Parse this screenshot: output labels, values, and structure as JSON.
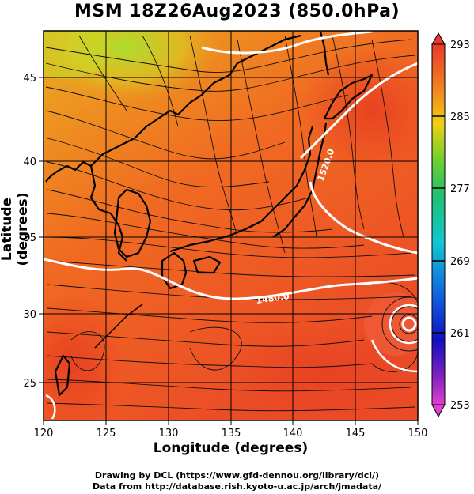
{
  "title": "MSM 18Z26Aug2023 (850.0hPa)",
  "xlabel": "Longitude (degrees)",
  "ylabel": "Latitude  (degrees)",
  "x_ticks": [
    "120",
    "125",
    "130",
    "135",
    "140",
    "145",
    "150"
  ],
  "y_ticks": [
    "25",
    "30",
    "35",
    "40",
    "45"
  ],
  "colorbar_ticks": [
    "293",
    "285",
    "277",
    "269",
    "261",
    "253"
  ],
  "contour_labels": [
    "1520.0",
    "1480.0"
  ],
  "credits": {
    "line1": "Drawing by DCL (https://www.gfd-dennou.org/library/dcl/)",
    "line2": "Data from http://database.rish.kyoto-u.ac.jp/arch/jmadata/"
  },
  "chart_data": {
    "type": "heatmap",
    "variable": "temperature at 850.0hPa with streamlines",
    "x_range": [
      120,
      150
    ],
    "y_range": [
      22.5,
      47.8
    ],
    "color_range": [
      253,
      293
    ],
    "colorbar_ticks": [
      293,
      285,
      277,
      269,
      261,
      253
    ],
    "contours": [
      {
        "label": "1520.0",
        "lon": 142.5,
        "lat": 38.5
      },
      {
        "label": "1480.0",
        "lon": 137,
        "lat": 31.2
      }
    ],
    "features": {
      "cyclone_center": {
        "lon": 149.4,
        "lat": 29.4
      }
    }
  }
}
